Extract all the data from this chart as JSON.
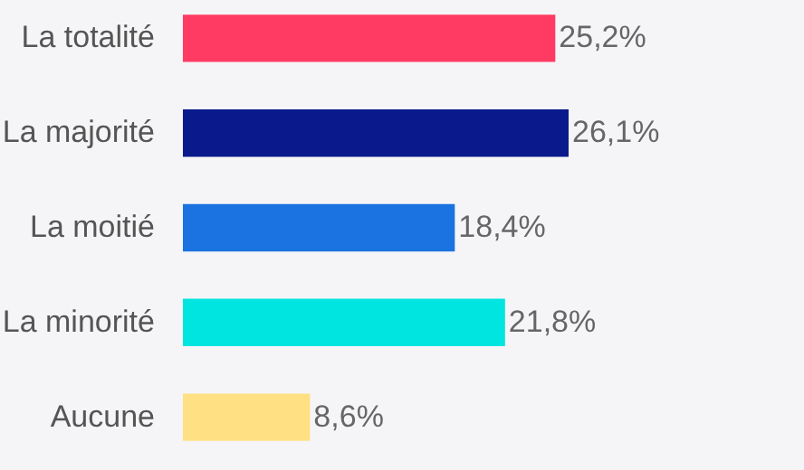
{
  "chart_data": {
    "type": "bar",
    "orientation": "horizontal",
    "categories": [
      "La totalité",
      "La majorité",
      "La moitié",
      "La minorité",
      "Aucune"
    ],
    "values": [
      25.2,
      26.1,
      18.4,
      21.8,
      8.6
    ],
    "colors": [
      "#ff3b63",
      "#0a1a8c",
      "#1a73e0",
      "#00e5e0",
      "#ffe082"
    ],
    "value_labels": [
      "25,2%",
      "26,1%",
      "18,4%",
      "21,8%",
      "8,6%"
    ],
    "tick_labels": "y"
  }
}
